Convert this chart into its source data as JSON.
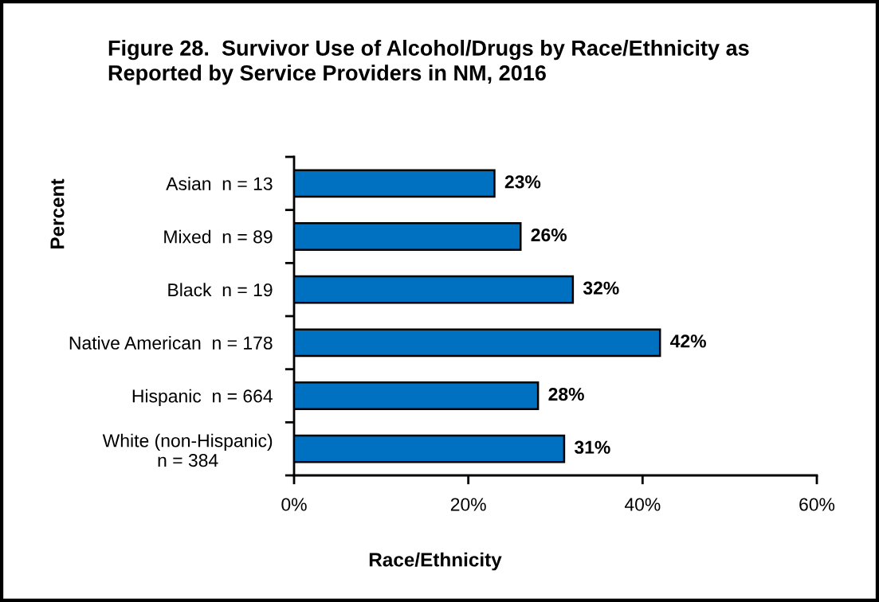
{
  "chart_data": {
    "type": "bar",
    "orientation": "horizontal",
    "title": "Figure 28.  Survivor Use of Alcohol/Drugs by Race/Ethnicity as\nReported by Service Providers in NM, 2016",
    "xlabel": "Race/Ethnicity",
    "ylabel": "Percent",
    "categories": [
      "Asian  n = 13",
      "Mixed  n = 89",
      "Black  n = 19",
      "Native American  n = 178",
      "Hispanic  n = 664",
      "White (non-Hispanic)\nn = 384"
    ],
    "values": [
      23,
      26,
      32,
      42,
      28,
      31
    ],
    "color": "#0070c0",
    "value_labels": [
      "23%",
      "26%",
      "32%",
      "42%",
      "28%",
      "31%"
    ],
    "xlim": [
      0,
      60
    ],
    "xticks": [
      {
        "value": 0,
        "label": "0%"
      },
      {
        "value": 20,
        "label": "20%"
      },
      {
        "value": 40,
        "label": "40%"
      },
      {
        "value": 60,
        "label": "60%"
      }
    ]
  }
}
